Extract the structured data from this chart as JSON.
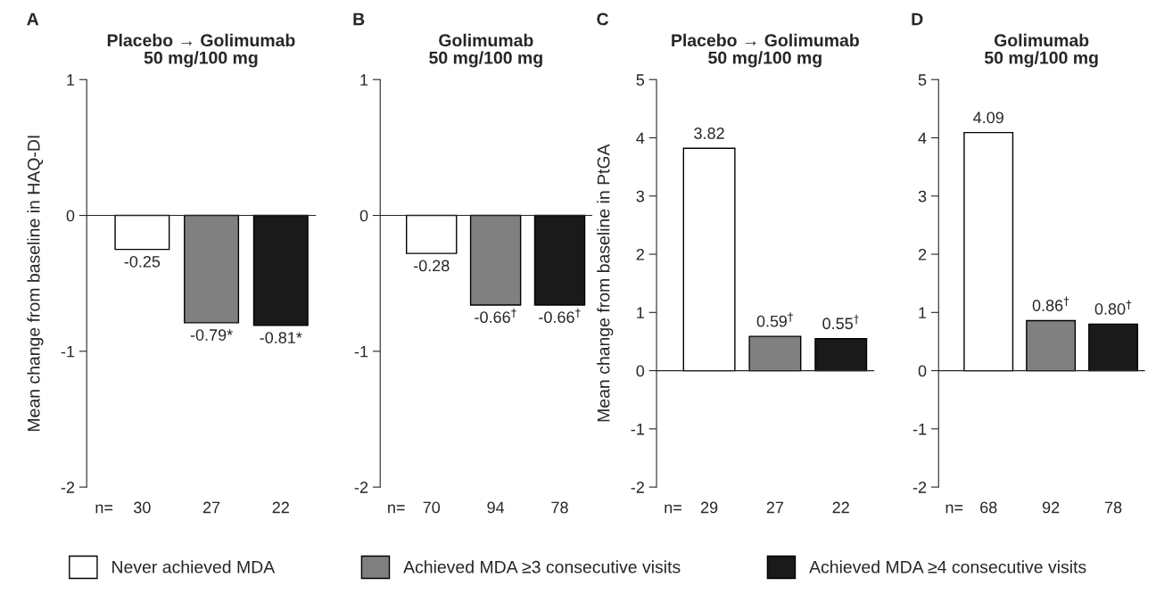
{
  "chart_data": [
    {
      "type": "bar",
      "title": "A",
      "subtitle": "Placebo → Golimumab\n50 mg/100 mg",
      "ylabel": "Mean change from baseline in HAQ-DI",
      "annotations": [
        "n="
      ],
      "categories": [
        "30",
        "27",
        "22"
      ],
      "ylim": [
        -2,
        1
      ],
      "yticks": [
        -2,
        -1,
        0,
        1
      ],
      "legend": "bottom",
      "series": [
        {
          "name": "Never achieved MDA",
          "color": "#ffffff",
          "values": [
            -0.25,
            null,
            null
          ],
          "value_labels": [
            "-0.25",
            null,
            null
          ]
        },
        {
          "name": "Achieved MDA ≥3 consecutive visits",
          "color": "#808080",
          "values": [
            null,
            -0.79,
            null
          ],
          "value_labels": [
            null,
            "-0.79*",
            null
          ]
        },
        {
          "name": "Achieved MDA ≥4 consecutive visits",
          "color": "#1a1a1a",
          "values": [
            null,
            null,
            -0.81
          ],
          "value_labels": [
            null,
            null,
            "-0.81*"
          ]
        }
      ]
    },
    {
      "type": "bar",
      "title": "B",
      "subtitle": "Golimumab\n50 mg/100 mg",
      "annotations": [
        "n="
      ],
      "categories": [
        "70",
        "94",
        "78"
      ],
      "ylim": [
        -2,
        1
      ],
      "yticks": [
        -2,
        -1,
        0,
        1
      ],
      "legend": "bottom",
      "series": [
        {
          "name": "Never achieved MDA",
          "color": "#ffffff",
          "values": [
            -0.28,
            null,
            null
          ],
          "value_labels": [
            "-0.28",
            null,
            null
          ]
        },
        {
          "name": "Achieved MDA ≥3 consecutive visits",
          "color": "#808080",
          "values": [
            null,
            -0.66,
            null
          ],
          "value_labels": [
            null,
            "-0.66$^{†}$",
            null
          ]
        },
        {
          "name": "Achieved MDA ≥4 consecutive visits",
          "color": "#1a1a1a",
          "values": [
            null,
            null,
            -0.66
          ],
          "value_labels": [
            null,
            null,
            "-0.66$^{†}$"
          ]
        }
      ]
    },
    {
      "type": "bar",
      "title": "C",
      "subtitle": "Placebo → Golimumab\n50 mg/100 mg",
      "ylabel": "Mean change from baseline in PtGA",
      "annotations": [
        "n="
      ],
      "categories": [
        "29",
        "27",
        "22"
      ],
      "ylim": [
        -2,
        5
      ],
      "yticks": [
        -2,
        -1,
        0,
        1,
        2,
        3,
        4,
        5
      ],
      "legend": "bottom",
      "series": [
        {
          "name": "Never achieved MDA",
          "color": "#ffffff",
          "values": [
            3.82,
            null,
            null
          ],
          "value_labels": [
            "3.82",
            null,
            null
          ]
        },
        {
          "name": "Achieved MDA ≥3 consecutive visits",
          "color": "#808080",
          "values": [
            null,
            0.59,
            null
          ],
          "value_labels": [
            null,
            "0.59$^{†}$",
            null
          ]
        },
        {
          "name": "Achieved MDA ≥4 consecutive visits",
          "color": "#1a1a1a",
          "values": [
            null,
            null,
            0.55
          ],
          "value_labels": [
            null,
            null,
            "0.55$^{†}$"
          ]
        }
      ]
    },
    {
      "type": "bar",
      "title": "D",
      "subtitle": "Golimumab\n50 mg/100 mg",
      "annotations": [
        "n="
      ],
      "categories": [
        "68",
        "92",
        "78"
      ],
      "ylim": [
        -2,
        5
      ],
      "yticks": [
        -2,
        -1,
        0,
        1,
        2,
        3,
        4,
        5
      ],
      "legend": "bottom",
      "series": [
        {
          "name": "Never achieved MDA",
          "color": "#ffffff",
          "values": [
            4.09,
            null,
            null
          ],
          "value_labels": [
            "4.09",
            null,
            null
          ]
        },
        {
          "name": "Achieved MDA ≥3 consecutive visits",
          "color": "#808080",
          "values": [
            null,
            0.86,
            null
          ],
          "value_labels": [
            null,
            "0.86$^{†}$",
            null
          ]
        },
        {
          "name": "Achieved MDA ≥4 consecutive visits",
          "color": "#1a1a1a",
          "values": [
            null,
            null,
            0.8
          ],
          "value_labels": [
            null,
            null,
            "0.80$^{†}$"
          ]
        }
      ]
    }
  ]
}
